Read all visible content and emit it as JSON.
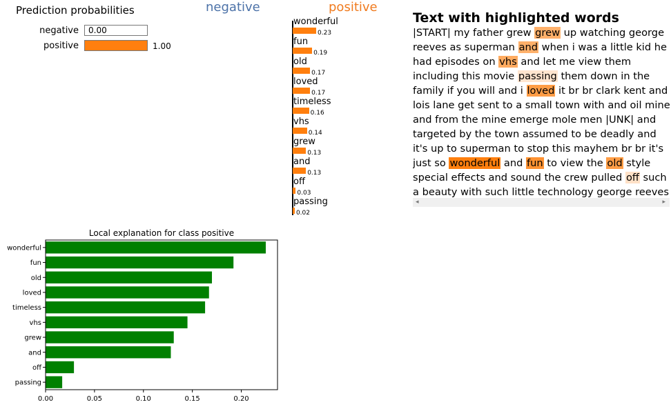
{
  "prediction": {
    "title": "Prediction probabilities",
    "classes": [
      {
        "label": "negative",
        "value_text": "0.00",
        "value": 0.0,
        "color": "#1f77b4"
      },
      {
        "label": "positive",
        "value_text": "1.00",
        "value": 1.0,
        "color": "#ff7f0e"
      }
    ]
  },
  "class_labels": {
    "negative": "negative",
    "positive": "positive"
  },
  "feature_bars": [
    {
      "word": "wonderful",
      "value_text": "0.23",
      "value": 0.23
    },
    {
      "word": "fun",
      "value_text": "0.19",
      "value": 0.19
    },
    {
      "word": "old",
      "value_text": "0.17",
      "value": 0.17
    },
    {
      "word": "loved",
      "value_text": "0.17",
      "value": 0.17
    },
    {
      "word": "timeless",
      "value_text": "0.16",
      "value": 0.16
    },
    {
      "word": "vhs",
      "value_text": "0.14",
      "value": 0.14
    },
    {
      "word": "grew",
      "value_text": "0.13",
      "value": 0.13
    },
    {
      "word": "and",
      "value_text": "0.13",
      "value": 0.13
    },
    {
      "word": "off",
      "value_text": "0.03",
      "value": 0.03
    },
    {
      "word": "passing",
      "value_text": "0.02",
      "value": 0.02
    }
  ],
  "highlighted_text": {
    "title": "Text with highlighted words",
    "segments": [
      {
        "t": "|START| my father grew "
      },
      {
        "t": "grew",
        "w": 0.13
      },
      {
        "t": " up watching george reeves as superman "
      },
      {
        "t": "and",
        "w": 0.13
      },
      {
        "t": " when i was a little kid he had episodes on "
      },
      {
        "t": "vhs",
        "w": 0.14
      },
      {
        "t": " and let me view them including this movie "
      },
      {
        "t": "passing",
        "w": 0.02
      },
      {
        "t": " them down in the family if you will and i "
      },
      {
        "t": "loved",
        "w": 0.17
      },
      {
        "t": " it br br clark kent and lois lane get sent to a small town with and oil mine and from the mine emerge mole men |UNK| and targeted by the town assumed to be deadly and it's up to superman to stop this mayhem br br it's just so "
      },
      {
        "t": "wonderful",
        "w": 0.23
      },
      {
        "t": " and "
      },
      {
        "t": "fun",
        "w": 0.19
      },
      {
        "t": " to view the "
      },
      {
        "t": "old",
        "w": 0.17
      },
      {
        "t": " style special effects and sound the crew pulled "
      },
      {
        "t": "off",
        "w": 0.03
      },
      {
        "t": " such a beauty with such little technology george reeves was my hero when i was a kid"
      }
    ],
    "highlight_color": "#ff7f0e"
  },
  "scrollbar": {
    "left_arrow": "◂",
    "right_arrow": "▸"
  },
  "chart_data": {
    "type": "bar",
    "orientation": "horizontal",
    "title": "Local explanation for class positive",
    "categories": [
      "wonderful",
      "fun",
      "old",
      "loved",
      "timeless",
      "vhs",
      "grew",
      "and",
      "off",
      "passing"
    ],
    "values": [
      0.225,
      0.192,
      0.17,
      0.167,
      0.163,
      0.145,
      0.131,
      0.128,
      0.029,
      0.017
    ],
    "xlim": [
      0,
      0.237
    ],
    "xticks": [
      0.0,
      0.05,
      0.1,
      0.15,
      0.2
    ],
    "xtick_labels": [
      "0.00",
      "0.05",
      "0.10",
      "0.15",
      "0.20"
    ],
    "bar_color": "#008000",
    "grid": false
  }
}
